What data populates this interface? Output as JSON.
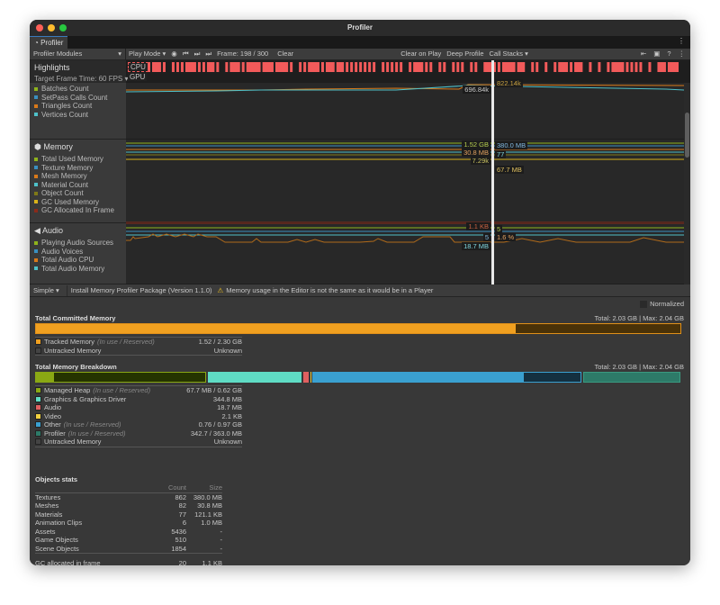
{
  "window": {
    "title": "Profiler"
  },
  "tab": {
    "label": "Profiler"
  },
  "toolbar": {
    "modules": "Profiler Modules",
    "play_mode": "Play Mode",
    "frame": "Frame: 198 / 300",
    "clear": "Clear",
    "clear_on_play": "Clear on Play",
    "deep_profile": "Deep Profile",
    "call_stacks": "Call Stacks"
  },
  "highlights": {
    "title": "Highlights",
    "target": "Target Frame Time: 60 FPS",
    "cpu": "CPU",
    "gpu": "GPU",
    "cpu_color": "#f25a5a"
  },
  "rendering": {
    "legend": [
      {
        "label": "Batches Count",
        "color": "#8fb31c"
      },
      {
        "label": "SetPass Calls Count",
        "color": "#3a8fc0"
      },
      {
        "label": "Triangles Count",
        "color": "#d97a1a"
      },
      {
        "label": "Vertices Count",
        "color": "#4fc1c9"
      }
    ],
    "values": [
      "696.84k",
      "822.14k"
    ]
  },
  "memory": {
    "title": "Memory",
    "legend": [
      {
        "label": "Total Used Memory",
        "color": "#8fb31c"
      },
      {
        "label": "Texture Memory",
        "color": "#3a8fc0"
      },
      {
        "label": "Mesh Memory",
        "color": "#d97a1a"
      },
      {
        "label": "Material Count",
        "color": "#4fc1c9"
      },
      {
        "label": "Object Count",
        "color": "#7f7a18"
      },
      {
        "label": "GC Used Memory",
        "color": "#d9b21a"
      },
      {
        "label": "GC Allocated In Frame",
        "color": "#8a2a1a"
      }
    ],
    "values": {
      "total": "1.52 GB",
      "texture": "380.0 MB",
      "mesh": "30.8 MB",
      "material": "77",
      "object": "7.29k",
      "gc_used": "67.7 MB",
      "gc_alloc": "1.1 KB"
    }
  },
  "audio": {
    "title": "Audio",
    "legend": [
      {
        "label": "Playing Audio Sources",
        "color": "#8fb31c"
      },
      {
        "label": "Audio Voices",
        "color": "#3a8fc0"
      },
      {
        "label": "Total Audio CPU",
        "color": "#d97a1a"
      },
      {
        "label": "Total Audio Memory",
        "color": "#4fc1c9"
      }
    ],
    "values": {
      "sources": "5",
      "voices": "5",
      "cpu": "1.6 %",
      "memory": "18.7 MB"
    }
  },
  "bottom_bar": {
    "view": "Simple",
    "install": "Install Memory Profiler Package (Version 1.1.0)",
    "warning": "Memory usage in the Editor is not the same as it would be in a Player"
  },
  "details": {
    "normalized": "Normalized",
    "committed": {
      "title": "Total Committed Memory",
      "total": "Total: 2.03 GB",
      "max": "Max: 2.04 GB",
      "fill_fraction": 0.745,
      "rows": [
        {
          "label": "Tracked Memory",
          "note": "(In use / Reserved)",
          "value": "1.52 / 2.30 GB",
          "color": "#f0a020"
        },
        {
          "label": "Untracked Memory",
          "note": "",
          "value": "Unknown",
          "color": "#444"
        }
      ]
    },
    "breakdown": {
      "title": "Total Memory Breakdown",
      "total": "Total: 2.03 GB",
      "max": "Max: 2.04 GB",
      "rows": [
        {
          "label": "Managed Heap",
          "note": "(In use / Reserved)",
          "value": "67.7 MB / 0.62 GB",
          "color": "#8aa814"
        },
        {
          "label": "Graphics & Graphics Driver",
          "note": "",
          "value": "344.8 MB",
          "color": "#5fdcc4"
        },
        {
          "label": "Audio",
          "note": "",
          "value": "18.7 MB",
          "color": "#e06060"
        },
        {
          "label": "Video",
          "note": "",
          "value": "2.1 KB",
          "color": "#f0d040"
        },
        {
          "label": "Other",
          "note": "(In use / Reserved)",
          "value": "0.76 / 0.97 GB",
          "color": "#3aa0d0"
        },
        {
          "label": "Profiler",
          "note": "(In use / Reserved)",
          "value": "342.7 / 363.0 MB",
          "color": "#2d7a68"
        },
        {
          "label": "Untracked Memory",
          "note": "",
          "value": "Unknown",
          "color": "#444"
        }
      ]
    },
    "objects": {
      "title": "Objects stats",
      "col_count": "Count",
      "col_size": "Size",
      "rows": [
        {
          "name": "Textures",
          "count": "862",
          "size": "380.0 MB"
        },
        {
          "name": "Meshes",
          "count": "82",
          "size": "30.8 MB"
        },
        {
          "name": "Materials",
          "count": "77",
          "size": "121.1 KB"
        },
        {
          "name": "Animation Clips",
          "count": "6",
          "size": "1.0 MB"
        },
        {
          "name": "Assets",
          "count": "5436",
          "size": "-"
        },
        {
          "name": "Game Objects",
          "count": "510",
          "size": "-"
        },
        {
          "name": "Scene Objects",
          "count": "1854",
          "size": "-"
        }
      ],
      "gc": {
        "name": "GC allocated in frame",
        "count": "20",
        "size": "1.1 KB"
      }
    }
  }
}
